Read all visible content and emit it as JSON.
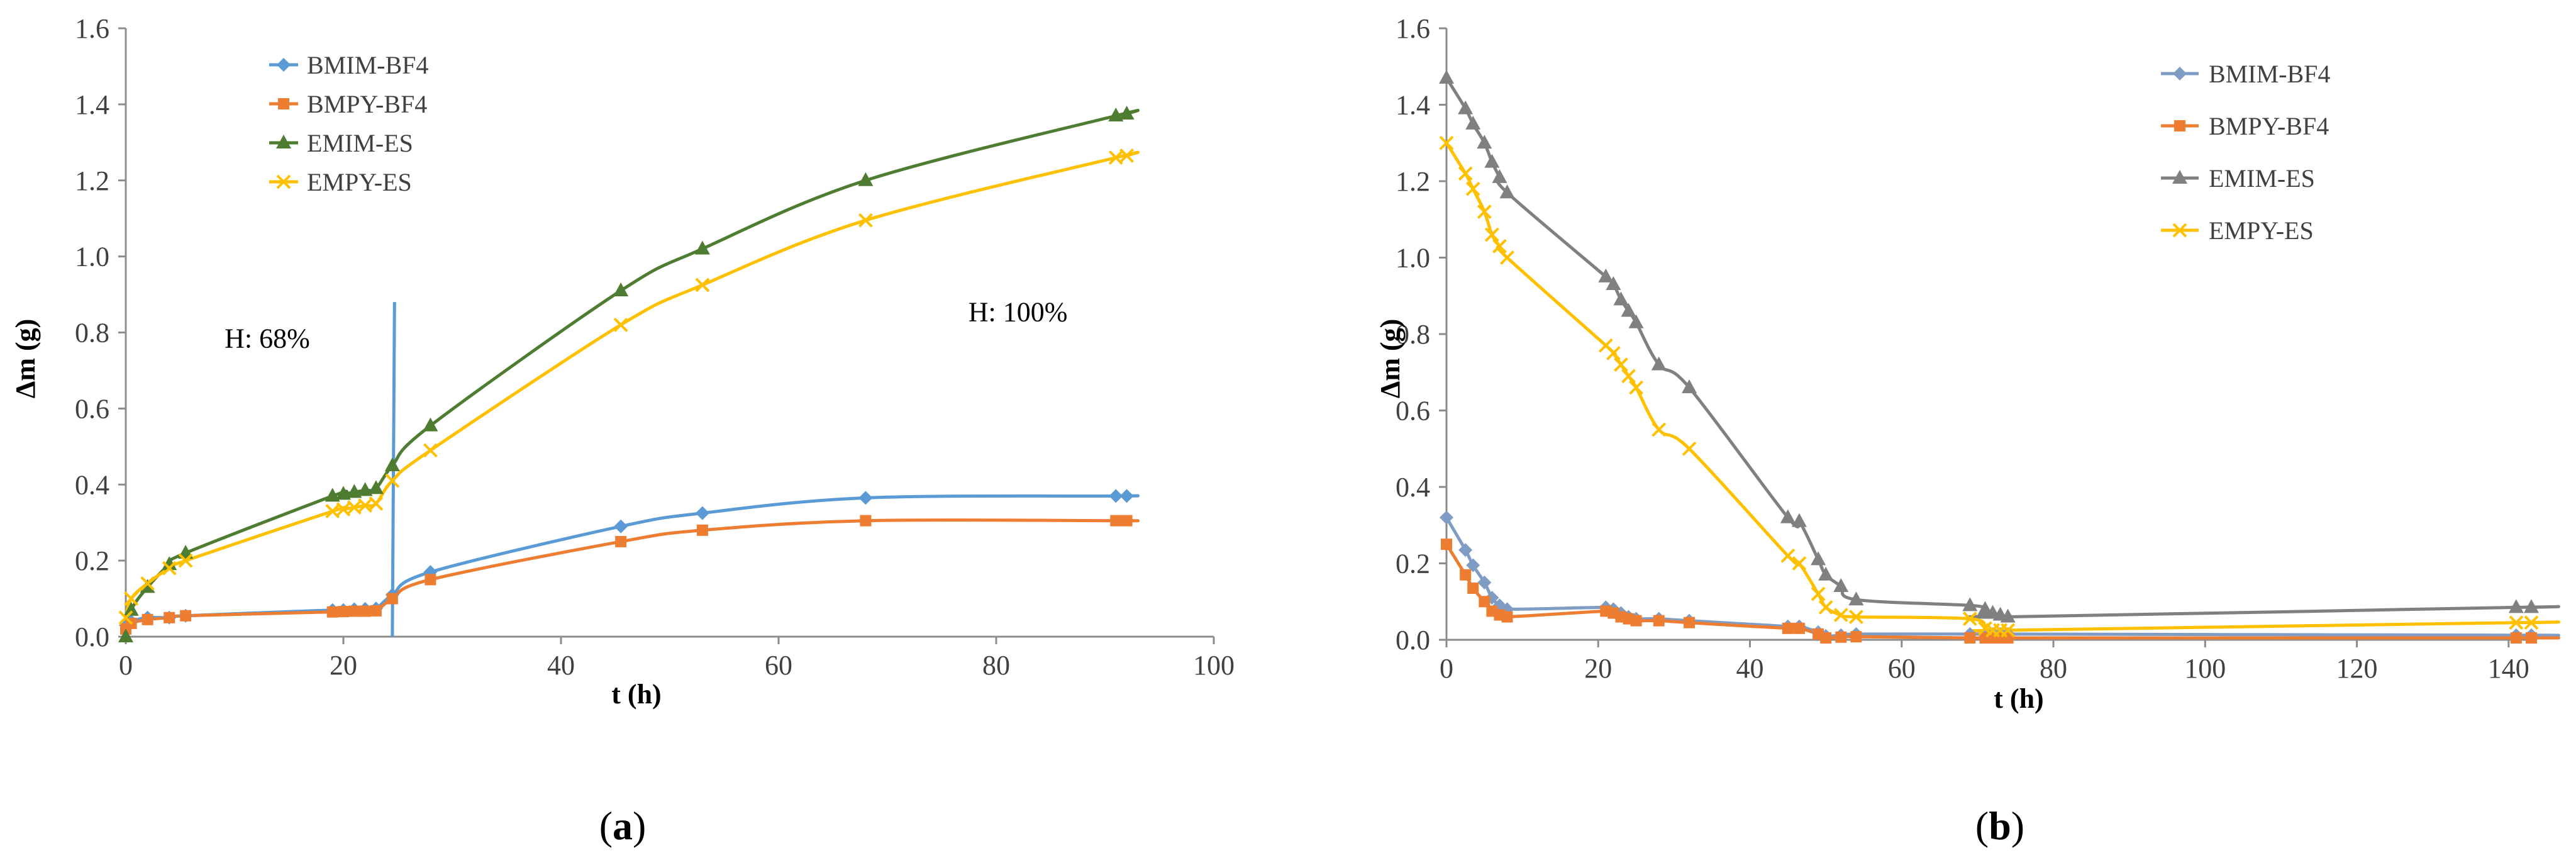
{
  "chart_data": [
    {
      "id": "a",
      "type": "line",
      "caption_open": "(",
      "caption_letter": "a",
      "caption_close": ")",
      "xlabel": "t (h)",
      "ylabel": "Δm (g)",
      "xlim": [
        0,
        100
      ],
      "ylim": [
        0,
        1.6
      ],
      "xticks": [
        "0",
        "20",
        "40",
        "60",
        "80",
        "100"
      ],
      "yticks": [
        "0.0",
        "0.2",
        "0.4",
        "0.6",
        "0.8",
        "1.0",
        "1.2",
        "1.4",
        "1.6"
      ],
      "legend_position": "top-left",
      "annotations": [
        {
          "text": "H: 68%",
          "x": 13,
          "y": 0.76
        },
        {
          "text": "H: 100%",
          "x": 82,
          "y": 0.83
        }
      ],
      "vertical_line": {
        "color": "#5B9BD5",
        "x_bottom": 24.5,
        "x_top": 24.7,
        "y_top": 0.88
      },
      "series": [
        {
          "name": "BMIM-BF4",
          "color": "#5B9BD5",
          "marker": "diamond",
          "x": [
            0,
            0.5,
            2,
            4,
            5.5,
            19,
            20,
            21,
            22,
            23,
            24.5,
            28,
            45.5,
            53,
            68,
            91,
            92
          ],
          "y": [
            0.03,
            0.04,
            0.05,
            0.05,
            0.055,
            0.07,
            0.07,
            0.072,
            0.073,
            0.074,
            0.11,
            0.17,
            0.29,
            0.325,
            0.365,
            0.37,
            0.37
          ]
        },
        {
          "name": "BMPY-BF4",
          "color": "#ED7D31",
          "marker": "square",
          "x": [
            0,
            0.5,
            2,
            4,
            5.5,
            19,
            20,
            21,
            22,
            23,
            24.5,
            28,
            45.5,
            53,
            68,
            91,
            92
          ],
          "y": [
            0.02,
            0.035,
            0.045,
            0.05,
            0.055,
            0.065,
            0.066,
            0.067,
            0.067,
            0.068,
            0.1,
            0.15,
            0.25,
            0.28,
            0.305,
            0.305,
            0.305
          ]
        },
        {
          "name": "EMIM-ES",
          "color": "#4E7D32",
          "marker": "triangle",
          "x": [
            0,
            0.5,
            2,
            4,
            5.5,
            19,
            20,
            21,
            22,
            23,
            24.5,
            28,
            45.5,
            53,
            68,
            91,
            92
          ],
          "y": [
            0,
            0.07,
            0.13,
            0.19,
            0.22,
            0.37,
            0.375,
            0.38,
            0.385,
            0.39,
            0.45,
            0.555,
            0.91,
            1.02,
            1.2,
            1.37,
            1.375
          ]
        },
        {
          "name": "EMPY-ES",
          "color": "#FFC000",
          "marker": "x",
          "x": [
            0,
            0.5,
            2,
            4,
            5.5,
            19,
            20,
            21,
            22,
            23,
            24.5,
            28,
            45.5,
            53,
            68,
            91,
            92
          ],
          "y": [
            0.05,
            0.1,
            0.14,
            0.18,
            0.2,
            0.33,
            0.335,
            0.34,
            0.345,
            0.35,
            0.41,
            0.49,
            0.82,
            0.925,
            1.095,
            1.26,
            1.265
          ]
        }
      ]
    },
    {
      "id": "b",
      "type": "line",
      "caption_open": "(",
      "caption_letter": "b",
      "caption_close": ")",
      "xlabel": "t (h)",
      "ylabel": "Δm (g)",
      "xlim": [
        0,
        143
      ],
      "ylim": [
        0,
        1.6
      ],
      "xticks": [
        "0",
        "20",
        "40",
        "60",
        "80",
        "100",
        "120",
        "140"
      ],
      "yticks": [
        "0.0",
        "0.2",
        "0.4",
        "0.6",
        "0.8",
        "1.0",
        "1.2",
        "1.4",
        "1.6"
      ],
      "legend_position": "top-right",
      "annotations": [],
      "series": [
        {
          "name": "BMIM-BF4",
          "color": "#7F9CC4",
          "marker": "diamond",
          "x": [
            0,
            2.5,
            3.5,
            5,
            6,
            7,
            8,
            21,
            22,
            23,
            24,
            25,
            28,
            32,
            45,
            46.5,
            49,
            50,
            52,
            54,
            69,
            71,
            72,
            73,
            74,
            141,
            143
          ],
          "y": [
            0.32,
            0.235,
            0.195,
            0.15,
            0.11,
            0.09,
            0.08,
            0.085,
            0.08,
            0.07,
            0.06,
            0.055,
            0.055,
            0.05,
            0.035,
            0.035,
            0.02,
            0.01,
            0.012,
            0.015,
            0.015,
            0.015,
            0.015,
            0.015,
            0.015,
            0.012,
            0.012
          ]
        },
        {
          "name": "BMPY-BF4",
          "color": "#ED7D31",
          "marker": "square",
          "x": [
            0,
            2.5,
            3.5,
            5,
            6,
            7,
            8,
            21,
            22,
            23,
            24,
            25,
            28,
            32,
            45,
            46.5,
            49,
            50,
            52,
            54,
            69,
            71,
            72,
            73,
            74,
            141,
            143
          ],
          "y": [
            0.25,
            0.17,
            0.135,
            0.1,
            0.075,
            0.065,
            0.06,
            0.075,
            0.07,
            0.06,
            0.055,
            0.05,
            0.05,
            0.045,
            0.03,
            0.03,
            0.015,
            0.005,
            0.007,
            0.008,
            0.005,
            0.005,
            0.005,
            0.005,
            0.005,
            0.005,
            0.005
          ]
        },
        {
          "name": "EMIM-ES",
          "color": "#808080",
          "marker": "triangle",
          "x": [
            0,
            2.5,
            3.5,
            5,
            6,
            7,
            8,
            21,
            22,
            23,
            24,
            25,
            28,
            32,
            45,
            46.5,
            49,
            50,
            52,
            54,
            69,
            71,
            72,
            73,
            74,
            141,
            143
          ],
          "y": [
            1.47,
            1.39,
            1.35,
            1.3,
            1.25,
            1.21,
            1.17,
            0.95,
            0.93,
            0.89,
            0.86,
            0.83,
            0.72,
            0.66,
            0.32,
            0.31,
            0.21,
            0.17,
            0.14,
            0.105,
            0.09,
            0.08,
            0.07,
            0.065,
            0.06,
            0.085,
            0.085
          ]
        },
        {
          "name": "EMPY-ES",
          "color": "#FFC000",
          "marker": "x",
          "x": [
            0,
            2.5,
            3.5,
            5,
            6,
            7,
            8,
            21,
            22,
            23,
            24,
            25,
            28,
            32,
            45,
            46.5,
            49,
            50,
            52,
            54,
            69,
            71,
            72,
            73,
            74,
            141,
            143
          ],
          "y": [
            1.3,
            1.22,
            1.18,
            1.12,
            1.06,
            1.03,
            1.0,
            0.77,
            0.75,
            0.72,
            0.69,
            0.66,
            0.55,
            0.5,
            0.22,
            0.2,
            0.12,
            0.085,
            0.065,
            0.06,
            0.055,
            0.03,
            0.025,
            0.025,
            0.025,
            0.045,
            0.045
          ]
        }
      ]
    }
  ]
}
